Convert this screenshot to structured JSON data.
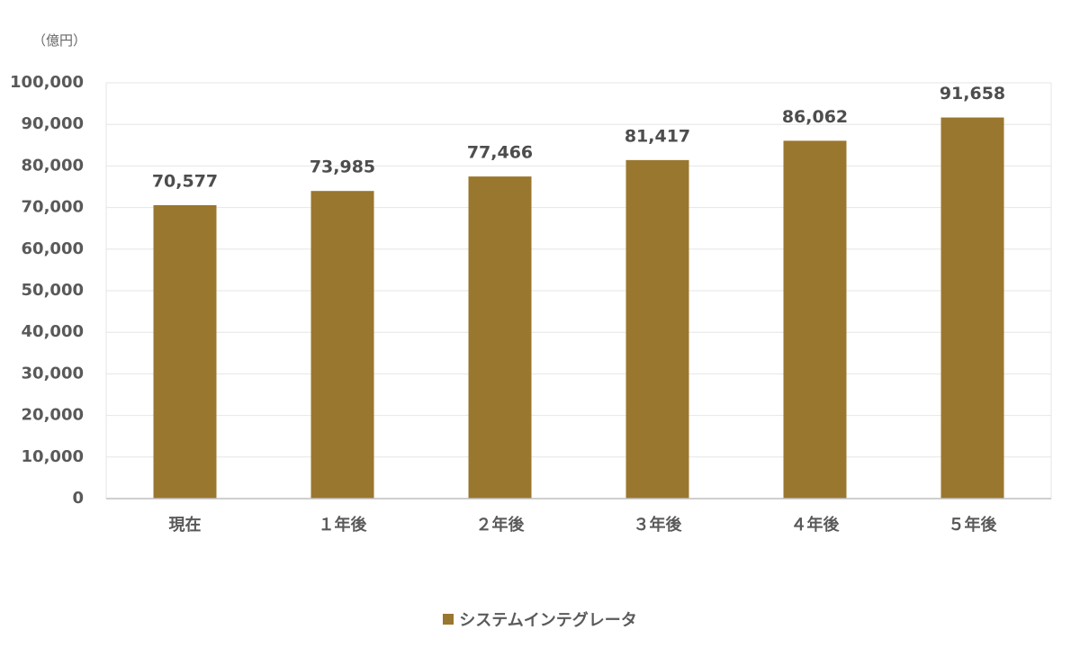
{
  "chart_data": {
    "type": "bar",
    "unit_label": "（億円）",
    "categories": [
      "現在",
      "１年後",
      "２年後",
      "３年後",
      "４年後",
      "５年後"
    ],
    "series": [
      {
        "name": "システムインテグレータ",
        "color": "#9a772e",
        "values": [
          70577,
          73985,
          77466,
          81417,
          86062,
          91658
        ],
        "data_labels": [
          "70,577",
          "73,985",
          "77,466",
          "81,417",
          "86,062",
          "91,658"
        ]
      }
    ],
    "ylim": [
      0,
      100000
    ],
    "yticks": [
      0,
      10000,
      20000,
      30000,
      40000,
      50000,
      60000,
      70000,
      80000,
      90000,
      100000
    ],
    "ytick_labels": [
      "0",
      "10,000",
      "20,000",
      "30,000",
      "40,000",
      "50,000",
      "60,000",
      "70,000",
      "80,000",
      "90,000",
      "100,000"
    ],
    "grid": true,
    "legend_position": "bottom-center",
    "colors": {
      "bar": "#9a772e",
      "grid": "#e6e6e6",
      "axis": "#bfbfbf",
      "text": "#595959"
    }
  }
}
